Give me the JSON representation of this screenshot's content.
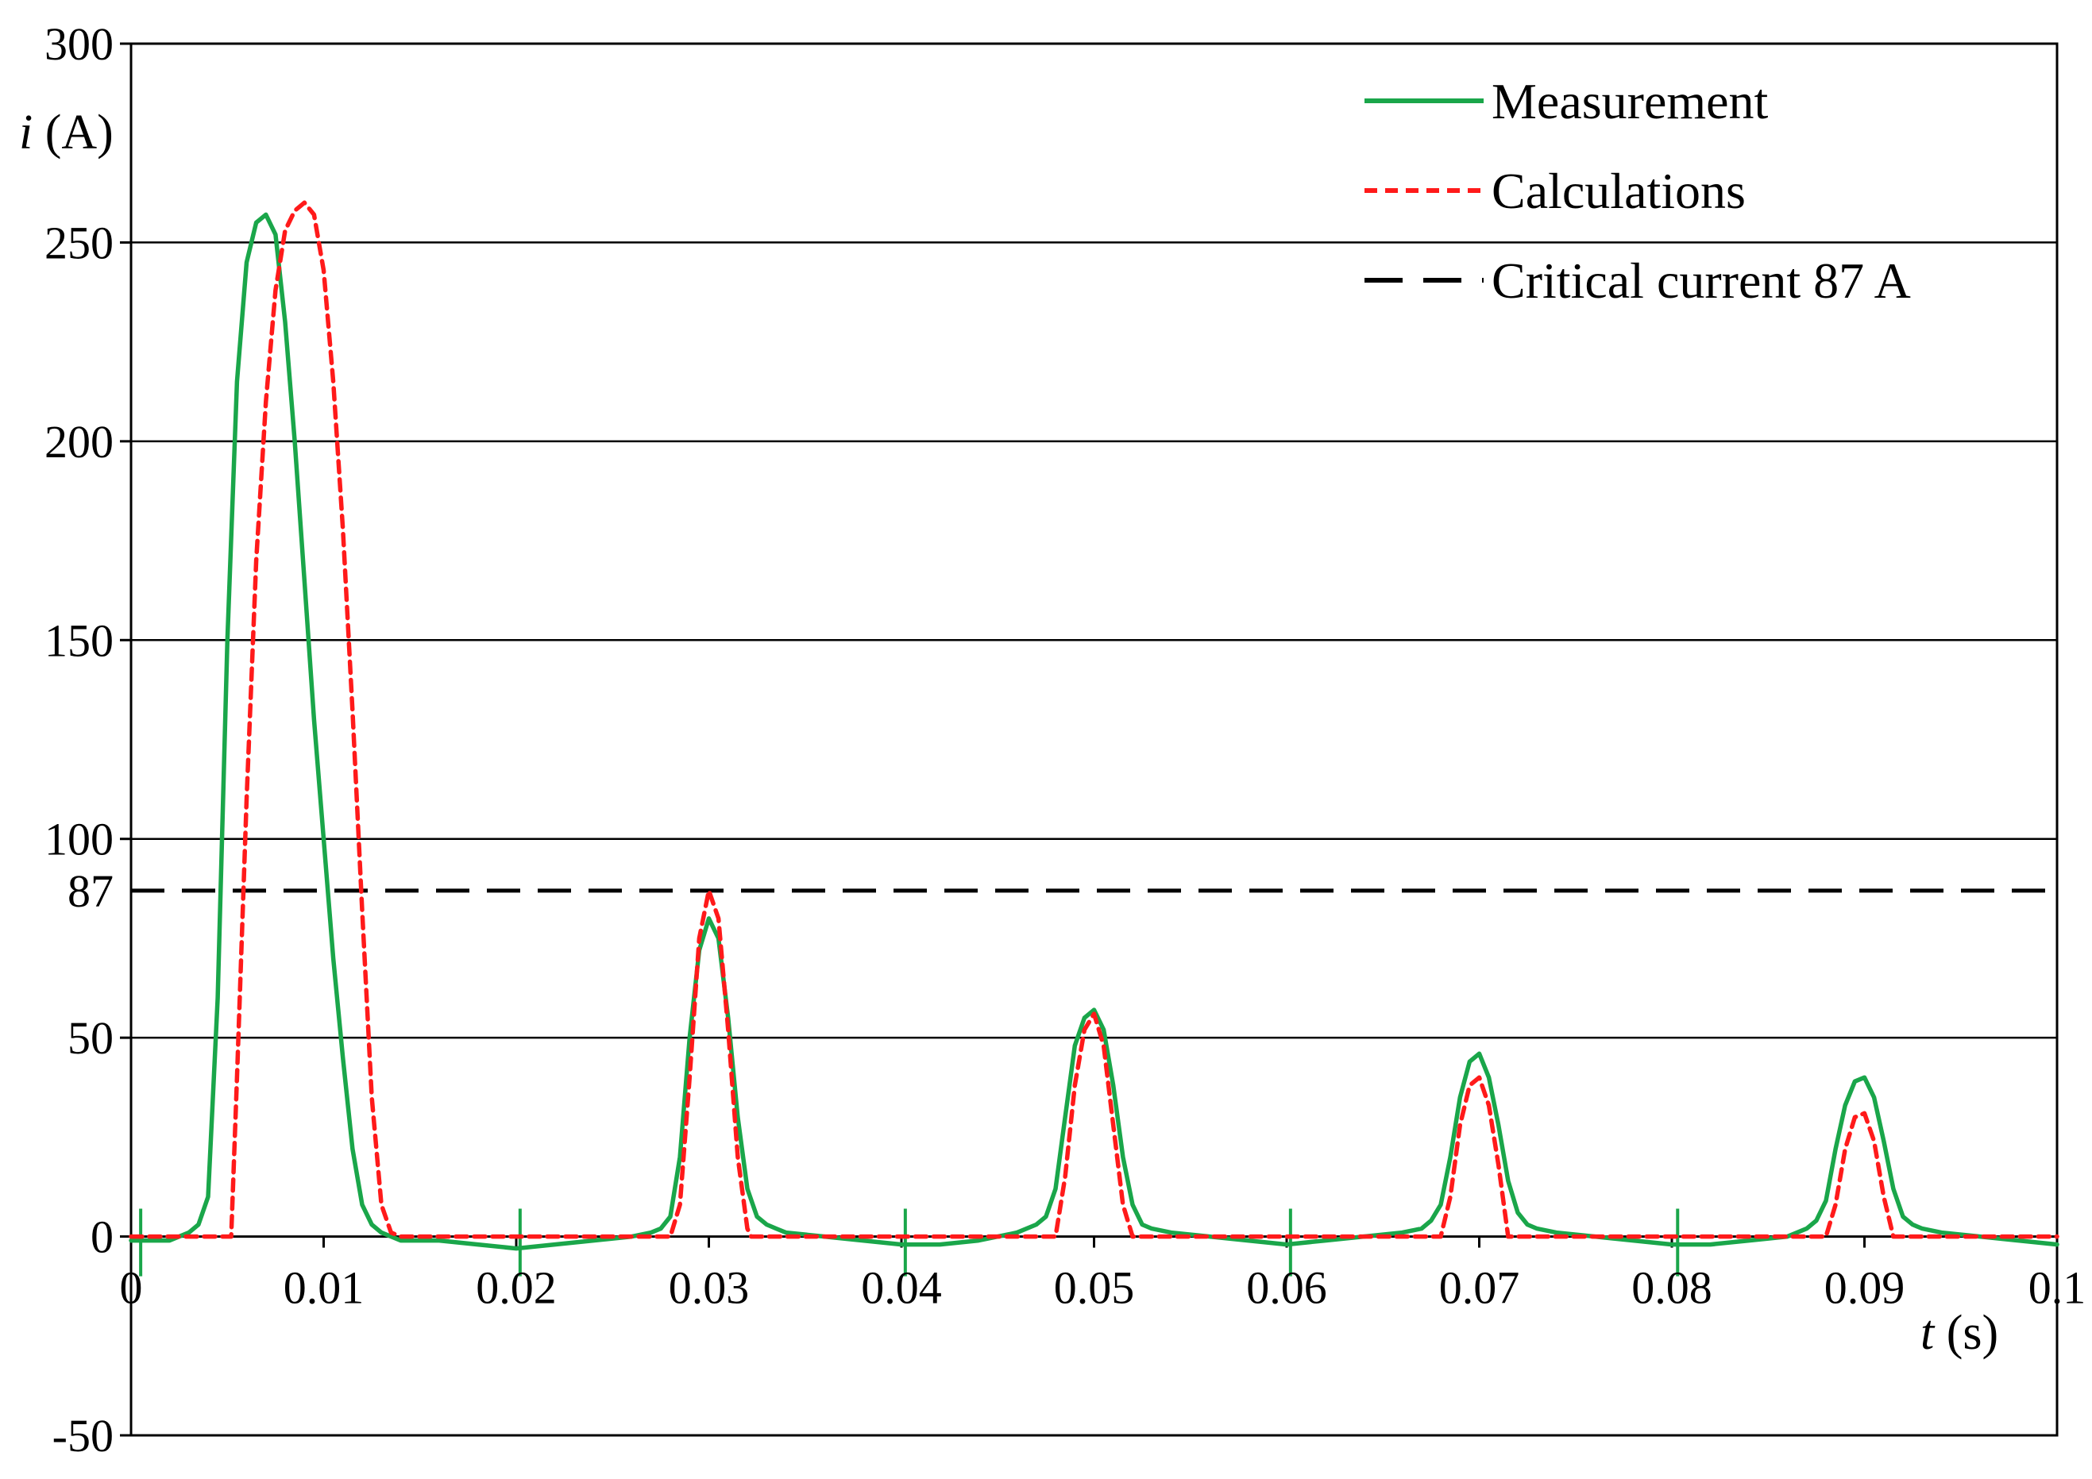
{
  "chart_data": {
    "type": "line",
    "xlim": [
      0,
      0.1
    ],
    "ylim": [
      -50,
      300
    ],
    "x_ticks": [
      0,
      0.01,
      0.02,
      0.03,
      0.04,
      0.05,
      0.06,
      0.07,
      0.08,
      0.09,
      0.1
    ],
    "x_tick_labels": [
      "0",
      "0.01",
      "0.02",
      "0.03",
      "0.04",
      "0.05",
      "0.06",
      "0.07",
      "0.08",
      "0.09",
      "0.1"
    ],
    "y_ticks": [
      -50,
      0,
      50,
      100,
      150,
      200,
      250,
      300
    ],
    "y_tick_labels": [
      "-50",
      "0",
      "50",
      "100",
      "150",
      "200",
      "250",
      "300"
    ],
    "y_extra_tick": {
      "value": 87,
      "label": "87"
    },
    "xlabel": {
      "var": "t",
      "unit": " (s)"
    },
    "ylabel": {
      "var": "i",
      "unit": " (A)"
    },
    "grid": "horizontal",
    "legend_position": "top-right",
    "series": [
      {
        "name": "Measurement",
        "color": "#1aa64a",
        "style": "solid",
        "x": [
          0,
          0.002,
          0.003,
          0.0035,
          0.004,
          0.0045,
          0.005,
          0.0055,
          0.006,
          0.0065,
          0.007,
          0.0075,
          0.008,
          0.0085,
          0.009,
          0.0095,
          0.01,
          0.0105,
          0.011,
          0.0115,
          0.012,
          0.0125,
          0.013,
          0.0135,
          0.014,
          0.016,
          0.018,
          0.02,
          0.022,
          0.024,
          0.026,
          0.027,
          0.0275,
          0.028,
          0.0285,
          0.029,
          0.0295,
          0.03,
          0.0305,
          0.031,
          0.0315,
          0.032,
          0.0325,
          0.033,
          0.0335,
          0.034,
          0.036,
          0.038,
          0.04,
          0.042,
          0.044,
          0.046,
          0.047,
          0.0475,
          0.048,
          0.0485,
          0.049,
          0.0495,
          0.05,
          0.0505,
          0.051,
          0.0515,
          0.052,
          0.0525,
          0.053,
          0.054,
          0.056,
          0.058,
          0.06,
          0.062,
          0.064,
          0.066,
          0.067,
          0.0675,
          0.068,
          0.0685,
          0.069,
          0.0695,
          0.07,
          0.0705,
          0.071,
          0.0715,
          0.072,
          0.0725,
          0.073,
          0.074,
          0.076,
          0.078,
          0.08,
          0.082,
          0.084,
          0.086,
          0.087,
          0.0875,
          0.088,
          0.0885,
          0.089,
          0.0895,
          0.09,
          0.0905,
          0.091,
          0.0915,
          0.092,
          0.0925,
          0.093,
          0.094,
          0.096,
          0.098,
          0.1
        ],
        "y": [
          -1,
          -1,
          1,
          3,
          10,
          60,
          150,
          215,
          245,
          255,
          257,
          252,
          230,
          200,
          165,
          130,
          100,
          70,
          45,
          22,
          8,
          3,
          1,
          0,
          -1,
          -1,
          -2,
          -3,
          -2,
          -1,
          0,
          1,
          2,
          5,
          20,
          50,
          72,
          80,
          75,
          55,
          30,
          12,
          5,
          3,
          2,
          1,
          0,
          -1,
          -2,
          -2,
          -1,
          1,
          3,
          5,
          12,
          30,
          48,
          55,
          57,
          52,
          38,
          20,
          8,
          3,
          2,
          1,
          0,
          -1,
          -2,
          -1,
          0,
          1,
          2,
          4,
          8,
          20,
          35,
          44,
          46,
          40,
          28,
          14,
          6,
          3,
          2,
          1,
          0,
          -1,
          -2,
          -2,
          -1,
          0,
          2,
          4,
          9,
          22,
          33,
          39,
          40,
          35,
          24,
          12,
          5,
          3,
          2,
          1,
          0,
          -1,
          -2
        ]
      },
      {
        "name": "Calculations",
        "color": "#ff1a1a",
        "style": "dashed",
        "x": [
          0,
          0.0052,
          0.0055,
          0.006,
          0.0065,
          0.007,
          0.0075,
          0.008,
          0.0085,
          0.009,
          0.0095,
          0.01,
          0.0105,
          0.011,
          0.0115,
          0.012,
          0.0125,
          0.013,
          0.0135,
          0.014,
          0.028,
          0.0285,
          0.029,
          0.0295,
          0.03,
          0.0305,
          0.031,
          0.0315,
          0.032,
          0.0322,
          0.048,
          0.0485,
          0.049,
          0.0495,
          0.05,
          0.0505,
          0.051,
          0.0515,
          0.052,
          0.068,
          0.0685,
          0.069,
          0.0695,
          0.07,
          0.0705,
          0.071,
          0.0715,
          0.088,
          0.0885,
          0.089,
          0.0895,
          0.09,
          0.0905,
          0.091,
          0.0915,
          0.1
        ],
        "y": [
          0,
          0,
          40,
          110,
          170,
          210,
          238,
          253,
          258,
          260,
          257,
          243,
          215,
          178,
          132,
          82,
          35,
          8,
          1,
          0,
          0,
          8,
          40,
          75,
          87,
          80,
          52,
          20,
          2,
          0,
          0,
          15,
          38,
          52,
          56,
          48,
          28,
          8,
          0,
          0,
          10,
          28,
          38,
          40,
          33,
          18,
          0,
          0,
          8,
          22,
          30,
          31,
          24,
          10,
          0,
          0
        ]
      }
    ],
    "threshold_line": {
      "name": "Critical current 87 A",
      "value": 87,
      "color": "#000000",
      "style": "long-dash"
    }
  }
}
